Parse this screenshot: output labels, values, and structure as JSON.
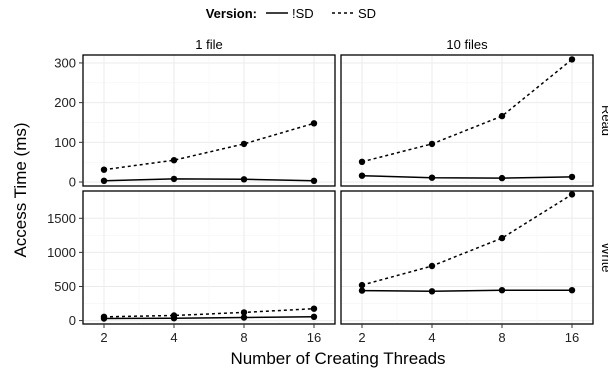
{
  "chart_data": {
    "type": "line",
    "xlabel": "Number of Creating Threads",
    "ylabel": "Access Time (ms)",
    "legend": {
      "title": "Version:",
      "placement": "top",
      "entries": [
        {
          "label": "!SD",
          "style": "solid"
        },
        {
          "label": "SD",
          "style": "dashed"
        }
      ]
    },
    "x": [
      2,
      4,
      8,
      16
    ],
    "x_ticks": [
      "2",
      "4",
      "8",
      "16"
    ],
    "x_scale": "log2",
    "columns": [
      "1 file",
      "10 files"
    ],
    "rows": [
      {
        "label": "Read",
        "ylim": [
          -10,
          320
        ],
        "y_ticks": [
          0,
          100,
          200,
          300
        ]
      },
      {
        "label": "Write",
        "ylim": [
          -50,
          1900
        ],
        "y_ticks": [
          0,
          500,
          1000,
          1500
        ]
      }
    ],
    "panels": [
      {
        "row": "Read",
        "column": "1 file",
        "series": [
          {
            "version": "!SD",
            "values": [
              3,
              8,
              7,
              3
            ]
          },
          {
            "version": "SD",
            "values": [
              31,
              55,
              96,
              148
            ]
          }
        ]
      },
      {
        "row": "Read",
        "column": "10 files",
        "series": [
          {
            "version": "!SD",
            "values": [
              16,
              11,
              10,
              13
            ]
          },
          {
            "version": "SD",
            "values": [
              51,
              96,
              166,
              309
            ]
          }
        ]
      },
      {
        "row": "Write",
        "column": "1 file",
        "series": [
          {
            "version": "!SD",
            "values": [
              30,
              35,
              45,
              55
            ]
          },
          {
            "version": "SD",
            "values": [
              55,
              75,
              120,
              175
            ]
          }
        ]
      },
      {
        "row": "Write",
        "column": "10 files",
        "series": [
          {
            "version": "!SD",
            "values": [
              440,
              430,
              445,
              445
            ]
          },
          {
            "version": "SD",
            "values": [
              520,
              800,
              1210,
              1850
            ]
          }
        ]
      }
    ]
  }
}
